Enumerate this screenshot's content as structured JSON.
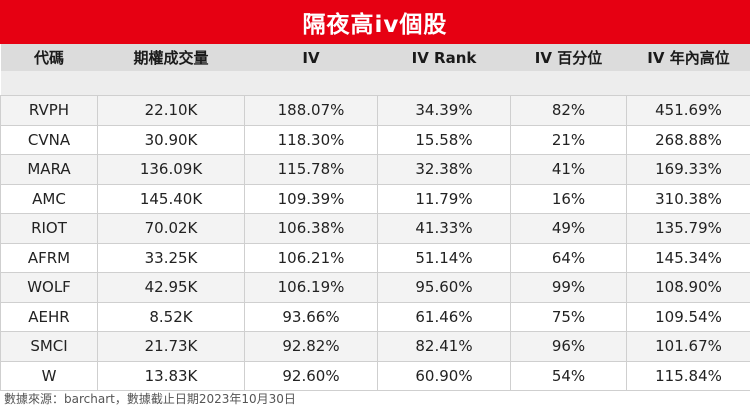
{
  "title": "隔夜高iv個股",
  "headers": [
    "代碼",
    "期權成交量",
    "IV",
    "IV Rank",
    "IV 百分位",
    "IV 年內高位"
  ],
  "rows": [
    [
      "RVPH",
      "22.10K",
      "188.07%",
      "34.39%",
      "82%",
      "451.69%"
    ],
    [
      "CVNA",
      "30.90K",
      "118.30%",
      "15.58%",
      "21%",
      "268.88%"
    ],
    [
      "MARA",
      "136.09K",
      "115.78%",
      "32.38%",
      "41%",
      "169.33%"
    ],
    [
      "AMC",
      "145.40K",
      "109.39%",
      "11.79%",
      "16%",
      "310.38%"
    ],
    [
      "RIOT",
      "70.02K",
      "106.38%",
      "41.33%",
      "49%",
      "135.79%"
    ],
    [
      "AFRM",
      "33.25K",
      "106.21%",
      "51.14%",
      "64%",
      "145.34%"
    ],
    [
      "WOLF",
      "42.95K",
      "106.19%",
      "95.60%",
      "99%",
      "108.90%"
    ],
    [
      "AEHR",
      "8.52K",
      "93.66%",
      "61.46%",
      "75%",
      "109.54%"
    ],
    [
      "SMCI",
      "21.73K",
      "92.82%",
      "82.41%",
      "96%",
      "101.67%"
    ],
    [
      "W",
      "13.83K",
      "92.60%",
      "60.90%",
      "54%",
      "115.84%"
    ]
  ],
  "footer": "數據來源：barchart，數據截止日期2023年10月30日",
  "colors": {
    "title_background": "#e60012",
    "header_background": "#dcdcdc"
  }
}
